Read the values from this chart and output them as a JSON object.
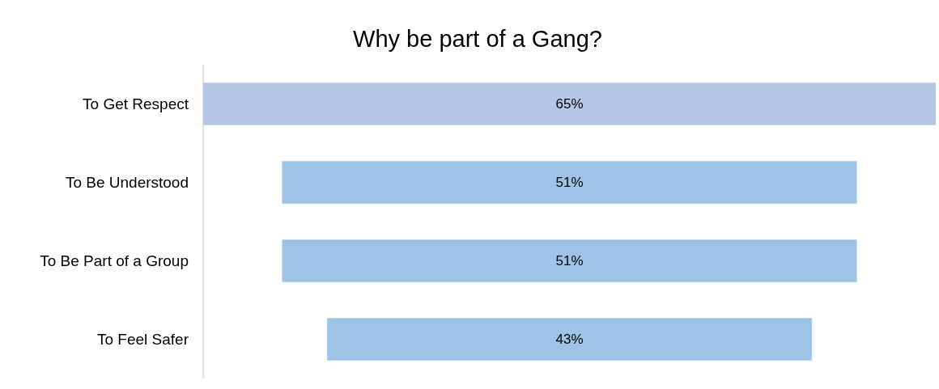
{
  "chart_data": {
    "type": "other",
    "title": "Why be part of a Gang?",
    "categories": [
      "To Get Respect",
      "To Be Understood",
      "To Be Part of a Group",
      "To Feel Safer"
    ],
    "values": [
      65,
      51,
      51,
      43
    ],
    "colors": [
      "#b4c7e7",
      "#9dc3e6",
      "#9dc3e6",
      "#9dc3e6"
    ],
    "value_labels": [
      "65%",
      "51%",
      "51%",
      "43%"
    ]
  }
}
